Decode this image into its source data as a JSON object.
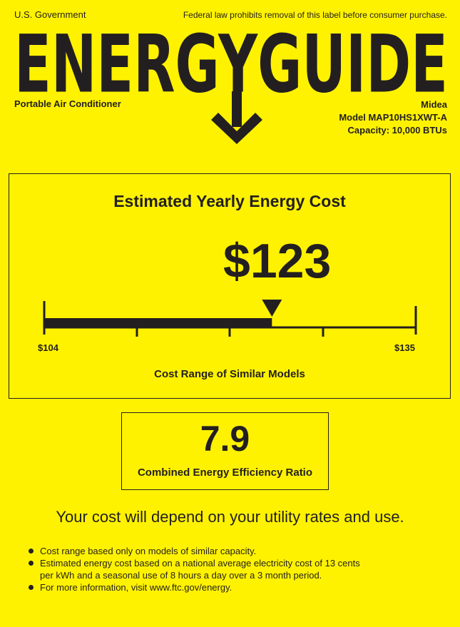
{
  "header": {
    "government": "U.S. Government",
    "notice": "Federal law prohibits removal of this label before consumer purchase.",
    "logo_text": "ENERGYGUIDE",
    "product_type": "Portable Air Conditioner",
    "brand": "Midea",
    "model": "Model MAP10HS1XWT-A",
    "capacity": "Capacity: 10,000 BTUs"
  },
  "cost": {
    "title": "Estimated Yearly Energy Cost",
    "value": "$123",
    "value_number": 123,
    "range_min": 104,
    "range_max": 135,
    "min_label": "$104",
    "max_label": "$135",
    "range_caption": "Cost Range of Similar Models"
  },
  "efficiency": {
    "value": "7.9",
    "label": "Combined Energy Efficiency Ratio"
  },
  "footer": {
    "headline": "Your cost will depend on your utility rates and use.",
    "bullets": [
      "Cost range based only on models of similar capacity.",
      "Estimated energy cost based on a national average electricity cost of 13 cents per kWh and a seasonal use of 8 hours a day over a 3 month period.",
      "For more information, visit www.ftc.gov/energy."
    ]
  },
  "colors": {
    "background": "#fff200",
    "ink": "#231f20"
  }
}
